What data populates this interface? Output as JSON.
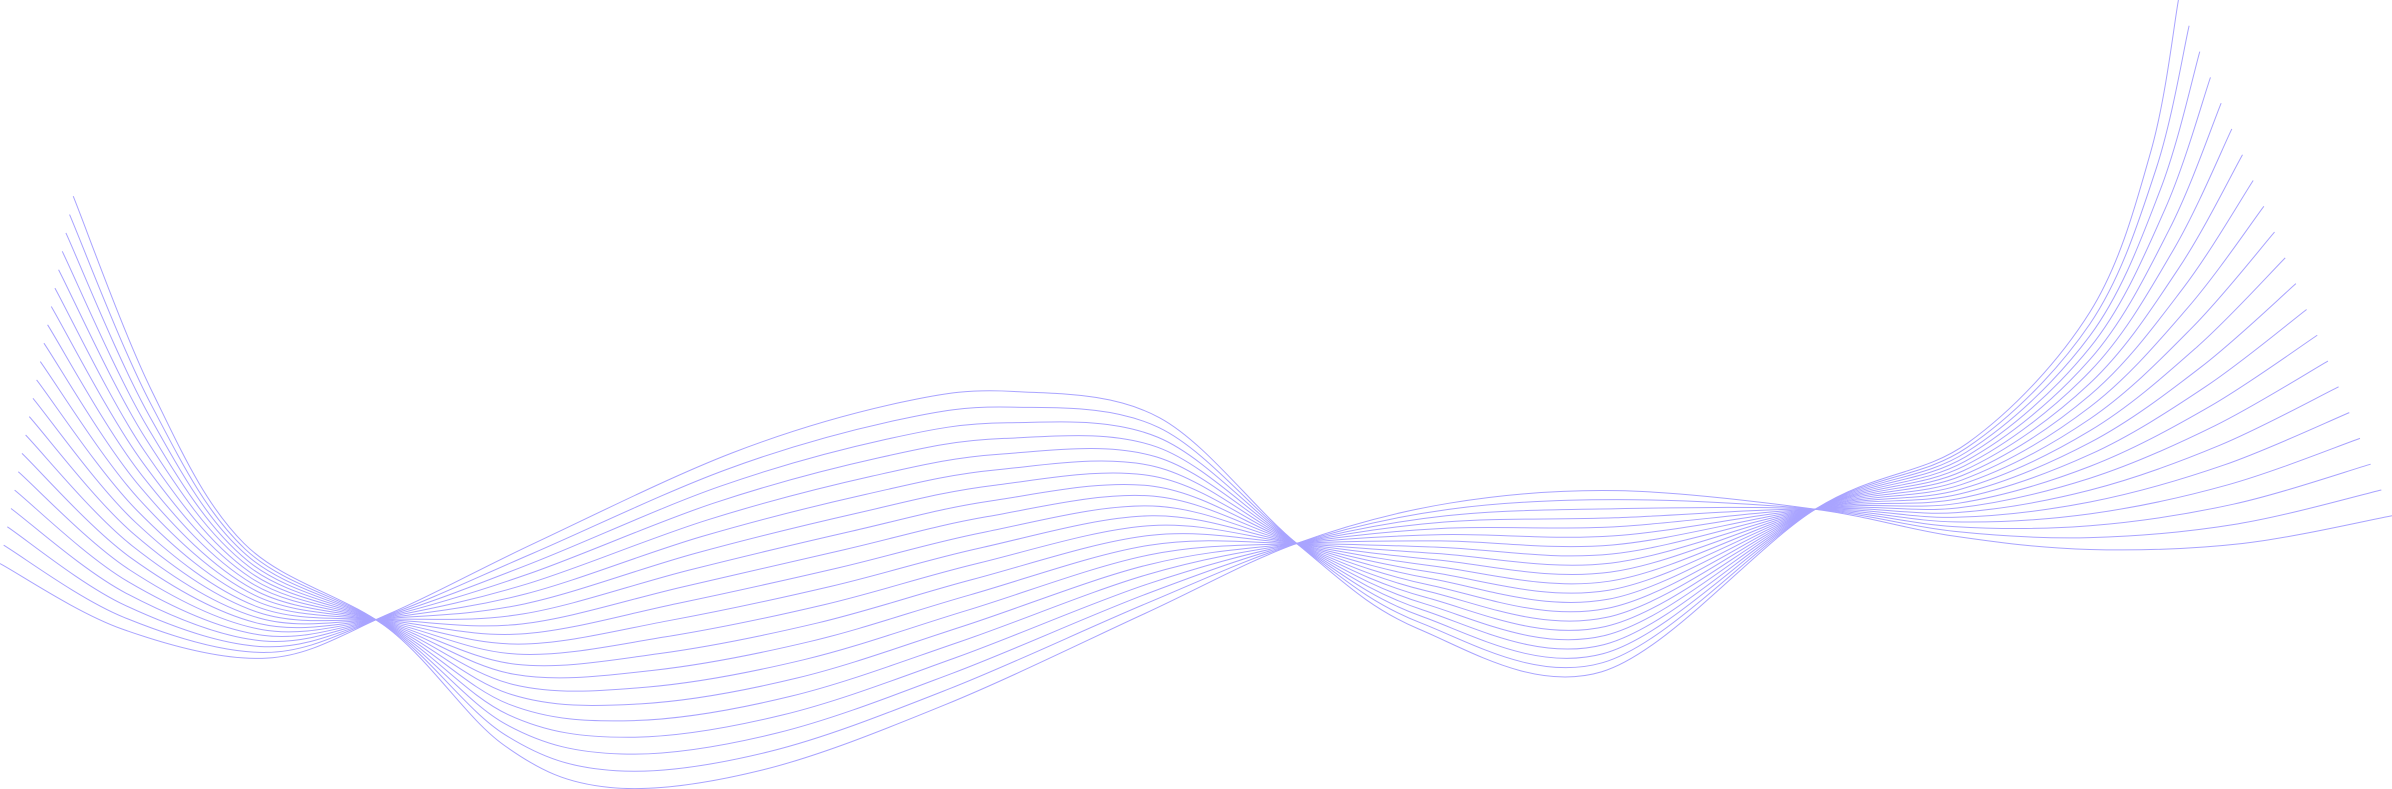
{
  "background": "#ffffff",
  "line_color": "#a9a4ff",
  "line_count": 21
}
